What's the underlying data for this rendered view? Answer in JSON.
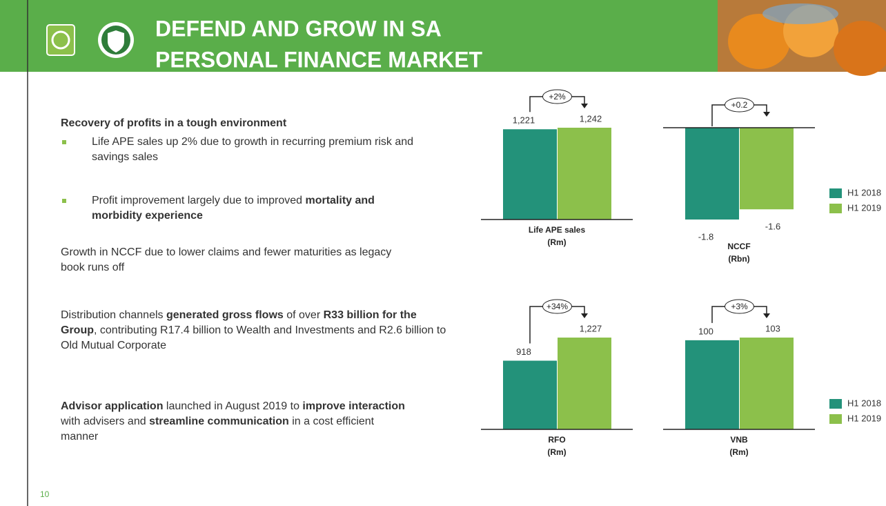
{
  "header": {
    "title": [
      "DEFEND AND GROW IN SA",
      "PERSONAL FINANCE MARKET"
    ]
  },
  "body": [
    {
      "bullet": false,
      "runs": [
        {
          "text": "Recovery of profits in a tough environment",
          "bold": true
        }
      ]
    },
    {
      "bullet": true,
      "runs": [
        {
          "text": "Life APE sales up 2% due to growth in recurring premium risk and savings sales",
          "bold": false
        }
      ]
    },
    {
      "bullet": true,
      "runs": [
        {
          "text": "Profit improvement largely due to improved ",
          "bold": false
        },
        {
          "text": "mortality and morbidity experience",
          "bold": true
        }
      ]
    },
    {
      "bullet": false,
      "runs": [
        {
          "text": "Growth in NCCF due to lower claims and fewer maturities as legacy book runs off",
          "bold": false
        }
      ]
    },
    {
      "bullet": false,
      "runs": [
        {
          "text": "Distribution channels ",
          "bold": false
        },
        {
          "text": "generated gross flows",
          "bold": true
        },
        {
          "text": " of over ",
          "bold": false
        },
        {
          "text": "R33 billion for the Group",
          "bold": true
        },
        {
          "text": ", contributing R17.4 billion to Wealth and Investments and R2.6 billion to Old Mutual Corporate",
          "bold": false
        }
      ]
    },
    {
      "bullet": false,
      "runs": [
        {
          "text": "Advisor application",
          "bold": true
        },
        {
          "text": " launched in August 2019 to ",
          "bold": false
        },
        {
          "text": "improve interaction",
          "bold": true
        },
        {
          "text": " with advisers and ",
          "bold": false
        },
        {
          "text": "streamline communication",
          "bold": true
        },
        {
          "text": " in a cost efficient manner",
          "bold": false
        }
      ]
    }
  ],
  "chart_data": [
    {
      "type": "bar",
      "title": "Life APE sales",
      "unit": "(Rm)",
      "change": "+2%",
      "series": [
        {
          "color": "#23927a",
          "values": [
            1221
          ],
          "value_labels": [
            "1,221"
          ]
        },
        {
          "color": "#8cc04b",
          "values": [
            1242
          ],
          "value_labels": [
            "1,242"
          ]
        }
      ]
    },
    {
      "type": "bar",
      "title": "NCCF",
      "unit": "(Rbn)",
      "change": "+0.2",
      "series": [
        {
          "name": "H1 2018",
          "color": "#23927a",
          "values": [
            -1.8
          ]
        },
        {
          "name": "H1 2019",
          "color": "#8cc04b",
          "values": [
            -1.6
          ]
        }
      ]
    },
    {
      "type": "bar",
      "title": "RFO",
      "unit": "(Rm)",
      "change": "+34%",
      "series": [
        {
          "color": "#23927a",
          "values": [
            918
          ]
        },
        {
          "color": "#8cc04b",
          "values": [
            1227
          ],
          "value_labels": [
            "1,227"
          ]
        }
      ]
    },
    {
      "type": "bar",
      "title": "VNB",
      "unit": "(Rm)",
      "change": "+3%",
      "series": [
        {
          "name": "H1 2018",
          "color": "#23927a",
          "values": [
            100
          ]
        },
        {
          "name": "H1 2019",
          "color": "#8cc04b",
          "values": [
            103
          ]
        }
      ]
    }
  ],
  "footer": {
    "page": "10"
  }
}
